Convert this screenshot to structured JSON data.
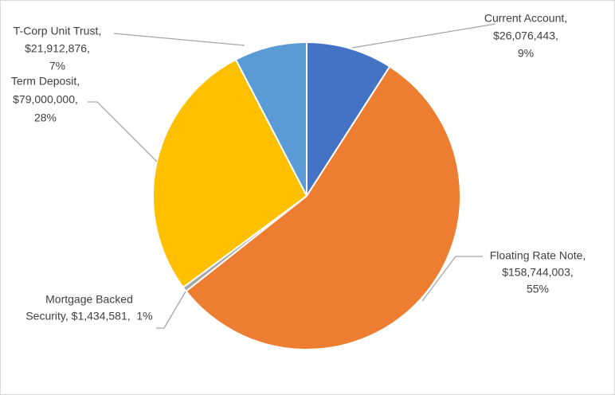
{
  "chart_data": {
    "type": "pie",
    "values": [
      26076443,
      158744003,
      1434581,
      79000000,
      21912876
    ],
    "colors": [
      "#4472c4",
      "#ed7d31",
      "#a5a5a5",
      "#ffc000",
      "#5b9bd5"
    ],
    "labels": [
      [
        "Current Account,",
        "$26,076,443,",
        "9%"
      ],
      [
        "Floating Rate Note,",
        "$158,744,003,",
        "55%"
      ],
      [
        "Mortgage Backed",
        "Security, $1,434,581,  1%"
      ],
      [
        "Term Deposit,",
        "$79,000,000,",
        "28%"
      ],
      [
        "T-Corp Unit Trust,",
        "$21,912,876,",
        "7%"
      ]
    ]
  }
}
